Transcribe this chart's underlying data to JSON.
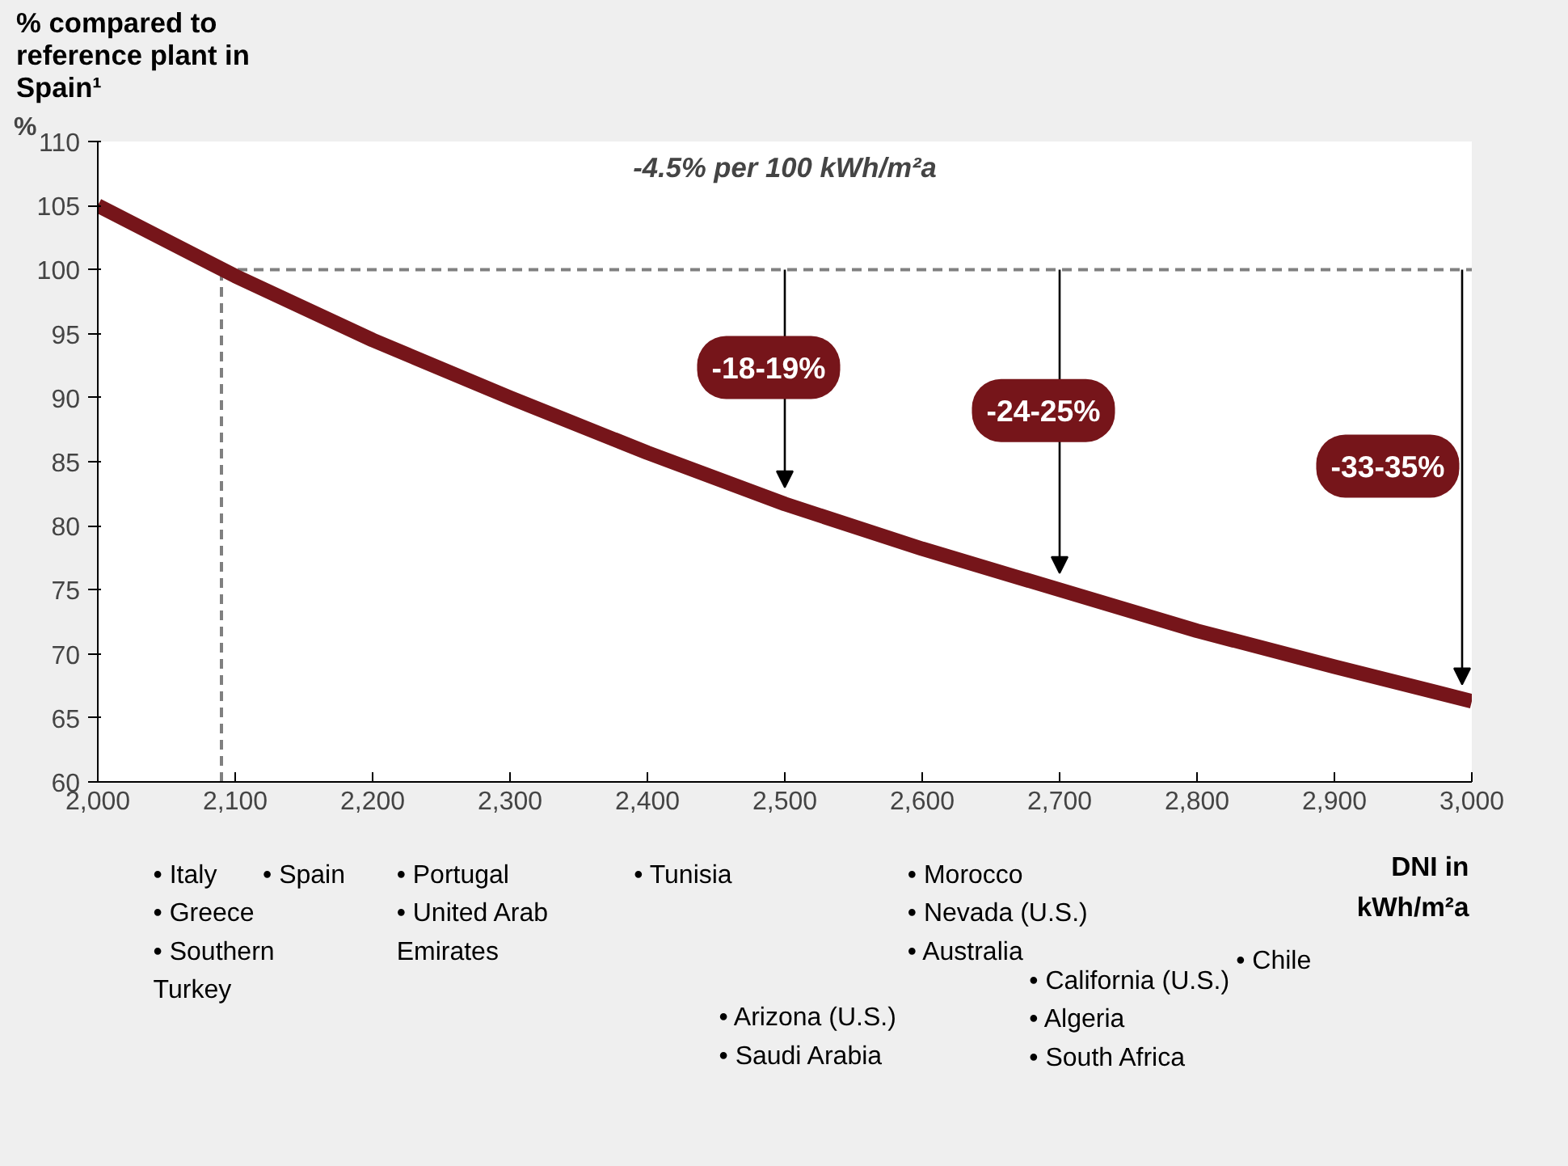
{
  "chart_data": {
    "type": "line",
    "title": "% compared to\nreference plant in\nSpain¹",
    "ylabel": "%",
    "xlabel": "DNI in\nkWh/m²a",
    "x": [
      2000,
      2100,
      2200,
      2300,
      2400,
      2500,
      2600,
      2700,
      2800,
      2900,
      3000
    ],
    "series": [
      {
        "color": "#76151a",
        "values": [
          105,
          99.5,
          94.5,
          90,
          85.7,
          81.7,
          78.2,
          75,
          71.8,
          69,
          66.3
        ]
      }
    ],
    "xlim": [
      2000,
      3000
    ],
    "ylim": [
      60,
      110
    ],
    "xticks": [
      {
        "value": 2000,
        "label": "2,000"
      },
      {
        "value": 2100,
        "label": "2,100"
      },
      {
        "value": 2200,
        "label": "2,200"
      },
      {
        "value": 2300,
        "label": "2,300"
      },
      {
        "value": 2400,
        "label": "2,400"
      },
      {
        "value": 2500,
        "label": "2,500"
      },
      {
        "value": 2600,
        "label": "2,600"
      },
      {
        "value": 2700,
        "label": "2,700"
      },
      {
        "value": 2800,
        "label": "2,800"
      },
      {
        "value": 2900,
        "label": "2,900"
      },
      {
        "value": 3000,
        "label": "3,000"
      }
    ],
    "yticks": [
      60,
      65,
      70,
      75,
      80,
      85,
      90,
      95,
      100,
      105,
      110
    ],
    "ref_lines": [
      {
        "axis": "y",
        "value": 100,
        "color": "#808080",
        "line_style": "dashed"
      },
      {
        "axis": "x",
        "value": 2090,
        "color": "#808080",
        "line_style": "dashed"
      }
    ],
    "annotations": [
      "-4.5% per 100 kWh/m²a",
      "-18-19%",
      "-24-25%",
      "-33-35%",
      "• Italy\n• Greece\n• Southern\n   Turkey",
      "• Spain",
      "• Portugal\n• United Arab\n   Emirates",
      "• Tunisia",
      "• Arizona (U.S.)\n• Saudi Arabia",
      "• Morocco\n• Nevada (U.S.)\n• Australia",
      "• California (U.S.)\n• Algeria\n• South Africa",
      "• Chile"
    ],
    "grid": false,
    "marker": "none",
    "line_style": "solid"
  }
}
